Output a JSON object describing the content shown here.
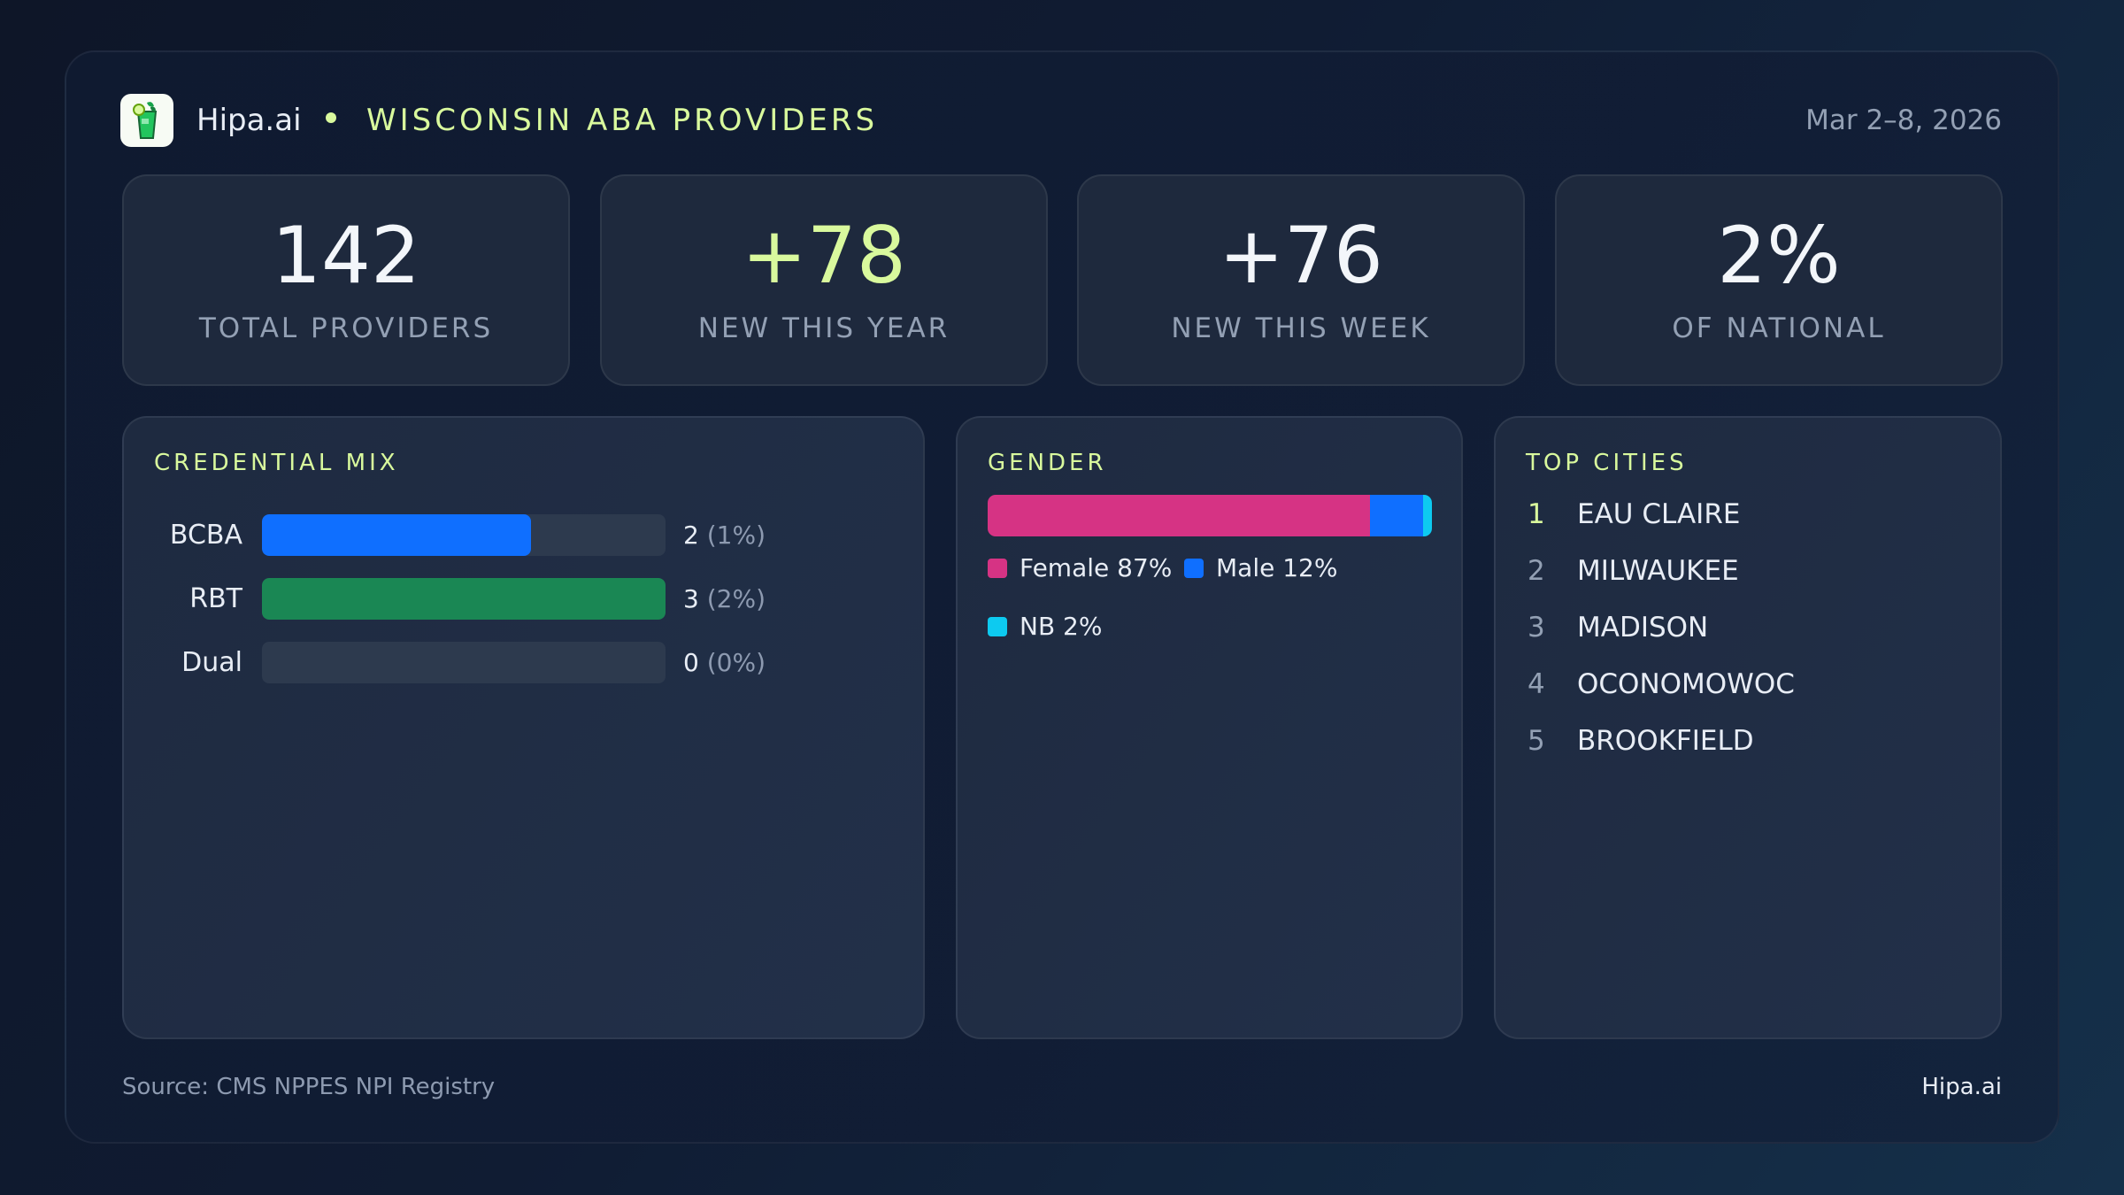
{
  "header": {
    "brand": "Hipa.ai",
    "title": "WISCONSIN ABA PROVIDERS",
    "date_range": "Mar 2–8, 2026",
    "logo_icon": "mojito-glass-icon"
  },
  "stats": [
    {
      "value": "142",
      "label": "TOTAL PROVIDERS",
      "accent": false
    },
    {
      "value": "+78",
      "label": "NEW THIS YEAR",
      "accent": true
    },
    {
      "value": "+76",
      "label": "NEW THIS WEEK",
      "accent": false
    },
    {
      "value": "2%",
      "label": "OF NATIONAL",
      "accent": false
    }
  ],
  "credential_mix": {
    "title": "CREDENTIAL MIX",
    "rows": [
      {
        "label": "BCBA",
        "count": 2,
        "count_text": "2",
        "pct_text": "(1%)",
        "color": "#0f6fff"
      },
      {
        "label": "RBT",
        "count": 3,
        "count_text": "3",
        "pct_text": "(2%)",
        "color": "#1a8754"
      },
      {
        "label": "Dual",
        "count": 0,
        "count_text": "0",
        "pct_text": "(0%)",
        "color": "#2d3a4e"
      }
    ]
  },
  "gender": {
    "title": "GENDER",
    "segments": [
      {
        "label": "Female 87%",
        "pct": 87,
        "color": "#d63384"
      },
      {
        "label": "Male 12%",
        "pct": 12,
        "color": "#0f6fff"
      },
      {
        "label": "NB 2%",
        "pct": 2,
        "color": "#0dcaf0"
      }
    ]
  },
  "top_cities": {
    "title": "TOP CITIES",
    "items": [
      {
        "rank": "1",
        "name": "EAU CLAIRE"
      },
      {
        "rank": "2",
        "name": "MILWAUKEE"
      },
      {
        "rank": "3",
        "name": "MADISON"
      },
      {
        "rank": "4",
        "name": "OCONOMOWOC"
      },
      {
        "rank": "5",
        "name": "BROOKFIELD"
      }
    ]
  },
  "footer": {
    "source": "Source: CMS NPPES NPI Registry",
    "brand": "Hipa.ai"
  },
  "colors": {
    "accent": "#d9f99d",
    "muted": "#93a0b4"
  }
}
